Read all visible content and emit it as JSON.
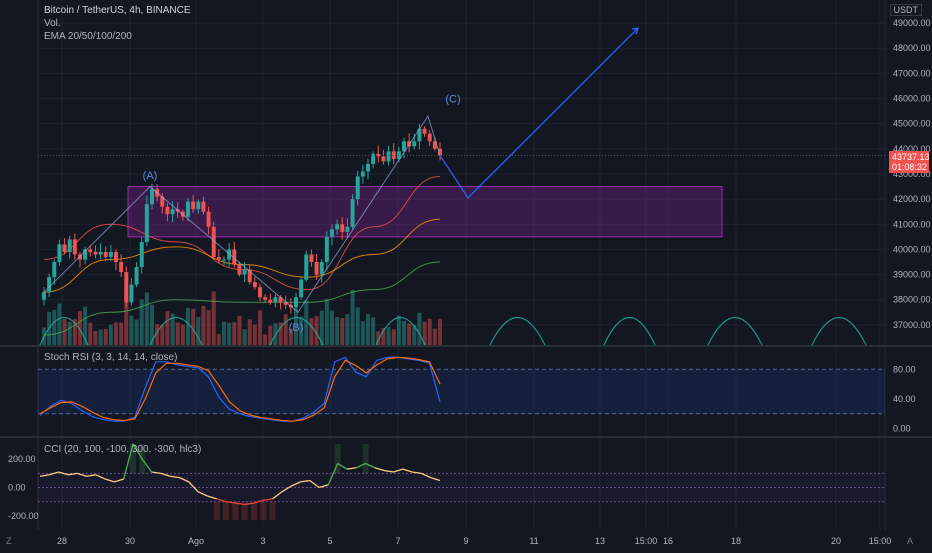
{
  "header": {
    "symbol": "Bitcoin / TetherUS, 4h, BINANCE",
    "vol_label": "Vol.",
    "ema_label": "EMA 20/50/100/200",
    "currency_label": "USDT"
  },
  "price_tag": {
    "price": "43737.13",
    "countdown": "01:08:32"
  },
  "indicators": {
    "stoch": {
      "label": "Stoch RSI (3, 3, 14, 14, close)",
      "ticks": [
        "80.00",
        "40.00",
        "0.00"
      ]
    },
    "cci": {
      "label": "CCI (20, 100, -100, 300, -300, hlc3)",
      "ticks": [
        "200.00",
        "0.00",
        "-200.00"
      ]
    }
  },
  "corner": {
    "left": "Z",
    "right": "A"
  },
  "colors": {
    "background": "#131722",
    "up": "#26a69a",
    "down": "#ef5350",
    "zone": "#9c27b0",
    "projection": "#2962ff",
    "stoch_k": "#2962ff",
    "stoch_d": "#ff6d00",
    "cci_line": "#ffcc80",
    "cci_high": "#4caf50",
    "cci_low": "#f44336"
  },
  "chart_data": [
    {
      "type": "candlestick",
      "title": "Bitcoin / TetherUS, 4h, BINANCE",
      "x_ticks": [
        "28",
        "30",
        "Ago",
        "3",
        "5",
        "7",
        "9",
        "11",
        "13",
        "15:00",
        "16",
        "18",
        "20",
        "15:00"
      ],
      "y_ticks": [
        49000,
        48000,
        47000,
        46000,
        45000,
        44000,
        43000,
        42000,
        41000,
        40000,
        39000,
        38000,
        37000
      ],
      "ylim": [
        36200,
        49600
      ],
      "close_series": [
        38300,
        38900,
        39500,
        40200,
        39900,
        40400,
        39800,
        39600,
        40000,
        39900,
        39800,
        39900,
        39700,
        39900,
        39500,
        39100,
        37900,
        38600,
        39300,
        40300,
        41800,
        42400,
        42100,
        41700,
        41400,
        41600,
        41500,
        41300,
        41900,
        41600,
        41900,
        41500,
        40900,
        39700,
        39600,
        39600,
        40000,
        39400,
        39000,
        39200,
        38700,
        38500,
        38100,
        38000,
        37900,
        38100,
        37900,
        37800,
        37700,
        38100,
        38800,
        39800,
        39500,
        39000,
        39500,
        40500,
        40800,
        41000,
        40700,
        40900,
        42000,
        42900,
        43100,
        43400,
        43800,
        43700,
        43500,
        43900,
        43600,
        43900,
        44300,
        44100,
        44300,
        44800,
        44600,
        44300,
        44000,
        43737
      ],
      "annotations": [
        "(A)",
        "(B)",
        "(C)"
      ],
      "zone": {
        "from": 40500,
        "to": 42500
      },
      "projection": [
        43737,
        42050,
        48800
      ],
      "ema_series": [
        {
          "name": "EMA 20",
          "color": "#ef5350",
          "values": [
            39600,
            41000,
            40300,
            39200,
            38400,
            40900,
            42900
          ]
        },
        {
          "name": "EMA 50",
          "color": "#ff9800",
          "values": [
            38300,
            39600,
            40100,
            39400,
            38900,
            39800,
            41200
          ]
        },
        {
          "name": "EMA 100",
          "color": "#4caf50",
          "values": [
            36600,
            37500,
            38000,
            37900,
            37900,
            38400,
            39500
          ]
        }
      ]
    },
    {
      "type": "line",
      "title": "Stoch RSI (3, 3, 14, 14, close)",
      "ylim": [
        -10,
        110
      ],
      "bands": [
        20,
        80
      ],
      "series": [
        {
          "values": [
            18,
            30,
            38,
            34,
            24,
            16,
            12,
            10,
            10,
            15,
            55,
            90,
            90,
            86,
            84,
            82,
            70,
            42,
            26,
            20,
            16,
            14,
            12,
            10,
            10,
            14,
            22,
            34,
            90,
            96,
            76,
            70,
            92,
            96,
            96,
            94,
            92,
            88,
            36
          ]
        },
        {
          "values": [
            20,
            28,
            35,
            36,
            30,
            22,
            15,
            12,
            11,
            13,
            40,
            75,
            88,
            88,
            86,
            84,
            78,
            58,
            36,
            24,
            18,
            15,
            13,
            11,
            10,
            12,
            18,
            28,
            70,
            92,
            85,
            75,
            86,
            94,
            96,
            95,
            93,
            90,
            60
          ]
        }
      ]
    },
    {
      "type": "line",
      "title": "CCI (20, 100, -100, 300, -300, hlc3)",
      "ylim": [
        -300,
        350
      ],
      "bands": [
        100,
        -100
      ],
      "series": [
        {
          "values": [
            80,
            90,
            110,
            90,
            100,
            80,
            90,
            60,
            40,
            60,
            310,
            200,
            110,
            100,
            80,
            70,
            40,
            -30,
            -60,
            -80,
            -100,
            -110,
            -120,
            -110,
            -90,
            -80,
            -30,
            10,
            40,
            50,
            0,
            20,
            170,
            130,
            140,
            170,
            140,
            120,
            110,
            130,
            110,
            100,
            70,
            50
          ]
        }
      ]
    }
  ]
}
